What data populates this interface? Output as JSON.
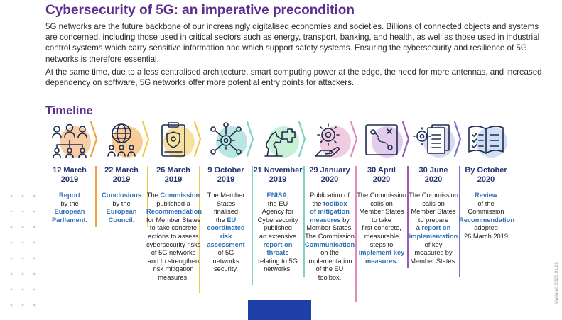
{
  "title": "Cybersecurity of 5G: an imperative precondition",
  "intro": {
    "p1": "5G networks are the future backbone of our increasingly digitalised economies and societies. Billions of connected objects and systems are concerned, including those used in critical sectors such as energy, transport, banking, and health, as well as those used in industrial control systems which carry sensitive information and which support safety systems. Ensuring the cybersecurity and resilience of 5G networks is therefore essential.",
    "p2": "At the same time, due to a less centralised architecture, smart computing power at the edge, the need for more antennas, and increased dependency on software, 5G networks offer more potential entry points for attackers."
  },
  "timeline_heading": "Timeline",
  "updated_note": "Updated 2020.01.29",
  "events": [
    {
      "date_line1": "12 March",
      "date_line2": "2019",
      "icon": "people-group-icon",
      "color": "#f4a460",
      "desc": [
        {
          "t": "Report",
          "h": true
        },
        {
          "t": "by the",
          "h": false
        },
        {
          "t": "European",
          "h": true
        },
        {
          "t": "Parliament.",
          "h": true
        }
      ]
    },
    {
      "date_line1": "22 March",
      "date_line2": "2019",
      "icon": "globe-people-icon",
      "color": "#f3a23d",
      "desc": [
        {
          "t": "Conclusions",
          "h": true
        },
        {
          "t": "by the",
          "h": false
        },
        {
          "t": "European",
          "h": true
        },
        {
          "t": "Council.",
          "h": true
        }
      ]
    },
    {
      "date_line1": "26 March",
      "date_line2": "2019",
      "icon": "clipboard-shield-icon",
      "color": "#f2c94c",
      "desc": [
        {
          "t": "The ",
          "h": false
        },
        {
          "t": "Commission",
          "h": true
        },
        {
          "t": "published a",
          "h": false
        },
        {
          "t": "Recommendation",
          "h": true
        },
        {
          "t": "for Member States",
          "h": false
        },
        {
          "t": "to take concrete",
          "h": false
        },
        {
          "t": "actions to assess",
          "h": false
        },
        {
          "t": "cybersecurity risks",
          "h": false
        },
        {
          "t": "of 5G networks",
          "h": false
        },
        {
          "t": "and to strengthen",
          "h": false
        },
        {
          "t": "risk mitigation",
          "h": false
        },
        {
          "t": "measures.",
          "h": false
        }
      ]
    },
    {
      "date_line1": "9 October",
      "date_line2": "2019",
      "icon": "network-gear-icon",
      "color": "#7fd1c7",
      "desc": [
        {
          "t": "The Member",
          "h": false
        },
        {
          "t": "States",
          "h": false
        },
        {
          "t": "finalised",
          "h": false
        },
        {
          "t": "the ",
          "h": false
        },
        {
          "t": "EU",
          "h": true
        },
        {
          "t": "coordinated",
          "h": true
        },
        {
          "t": "risk",
          "h": true
        },
        {
          "t": "assessment",
          "h": true
        },
        {
          "t": "of 5G",
          "h": false
        },
        {
          "t": "networks",
          "h": false
        },
        {
          "t": "security.",
          "h": false
        }
      ]
    },
    {
      "date_line1": "21 November",
      "date_line2": "2019",
      "icon": "chess-knight-puzzle-icon",
      "color": "#9be3b0",
      "desc": [
        {
          "t": "ENISA,",
          "h": true
        },
        {
          "t": "the EU",
          "h": false
        },
        {
          "t": "Agency for",
          "h": false
        },
        {
          "t": "Cybersecurity",
          "h": false
        },
        {
          "t": "published",
          "h": false
        },
        {
          "t": "an extensive",
          "h": false
        },
        {
          "t": "report on",
          "h": true
        },
        {
          "t": "threats",
          "h": true
        },
        {
          "t": "relating to 5G",
          "h": false
        },
        {
          "t": "networks.",
          "h": false
        }
      ]
    },
    {
      "date_line1": "29 January",
      "date_line2": "2020",
      "icon": "gear-hand-icon",
      "color": "#e6a0c4",
      "desc": [
        {
          "t": "Publication of",
          "h": false
        },
        {
          "t": "the ",
          "h": false
        },
        {
          "t": "toolbox",
          "h": true
        },
        {
          "t": "of mitigation",
          "h": true
        },
        {
          "t": "measures",
          "h": true
        },
        {
          "t": " by",
          "h": false
        },
        {
          "t": "Member States.",
          "h": false
        },
        {
          "t": "The Commission",
          "h": false
        },
        {
          "t": "Communication",
          "h": true
        },
        {
          "t": "on the",
          "h": false
        },
        {
          "t": "implementation",
          "h": false
        },
        {
          "t": "of the EU",
          "h": false
        },
        {
          "t": "toolbox.",
          "h": false
        }
      ]
    },
    {
      "date_line1": "30 April",
      "date_line2": "2020",
      "icon": "roadmap-icon",
      "color": "#c9a3dc",
      "desc": [
        {
          "t": "The Commission",
          "h": false
        },
        {
          "t": "calls on",
          "h": false
        },
        {
          "t": "Member States",
          "h": false
        },
        {
          "t": "to take",
          "h": false
        },
        {
          "t": "first concrete,",
          "h": false
        },
        {
          "t": "measurable",
          "h": false
        },
        {
          "t": "steps to",
          "h": false
        },
        {
          "t": "implement key",
          "h": true
        },
        {
          "t": "measures.",
          "h": true
        }
      ]
    },
    {
      "date_line1": "30 June",
      "date_line2": "2020",
      "icon": "documents-gear-icon",
      "color": "#b7b9e6",
      "desc": [
        {
          "t": "The Commission",
          "h": false
        },
        {
          "t": "calls on",
          "h": false
        },
        {
          "t": "Member States",
          "h": false
        },
        {
          "t": "to prepare",
          "h": false
        },
        {
          "t": "a ",
          "h": false
        },
        {
          "t": "report on",
          "h": true
        },
        {
          "t": "implementation",
          "h": true
        },
        {
          "t": "of key",
          "h": false
        },
        {
          "t": "measures by",
          "h": false
        },
        {
          "t": "Member States.",
          "h": false
        }
      ]
    },
    {
      "date_line1": "By October",
      "date_line2": "2020",
      "icon": "checklist-book-icon",
      "color": "#a8c7ef",
      "desc": [
        {
          "t": "Review",
          "h": true
        },
        {
          "t": "of the",
          "h": false
        },
        {
          "t": "Commission",
          "h": false
        },
        {
          "t": "Recommendation",
          "h": true
        },
        {
          "t": "adopted",
          "h": false
        },
        {
          "t": "26 March 2019",
          "h": false
        }
      ]
    }
  ]
}
